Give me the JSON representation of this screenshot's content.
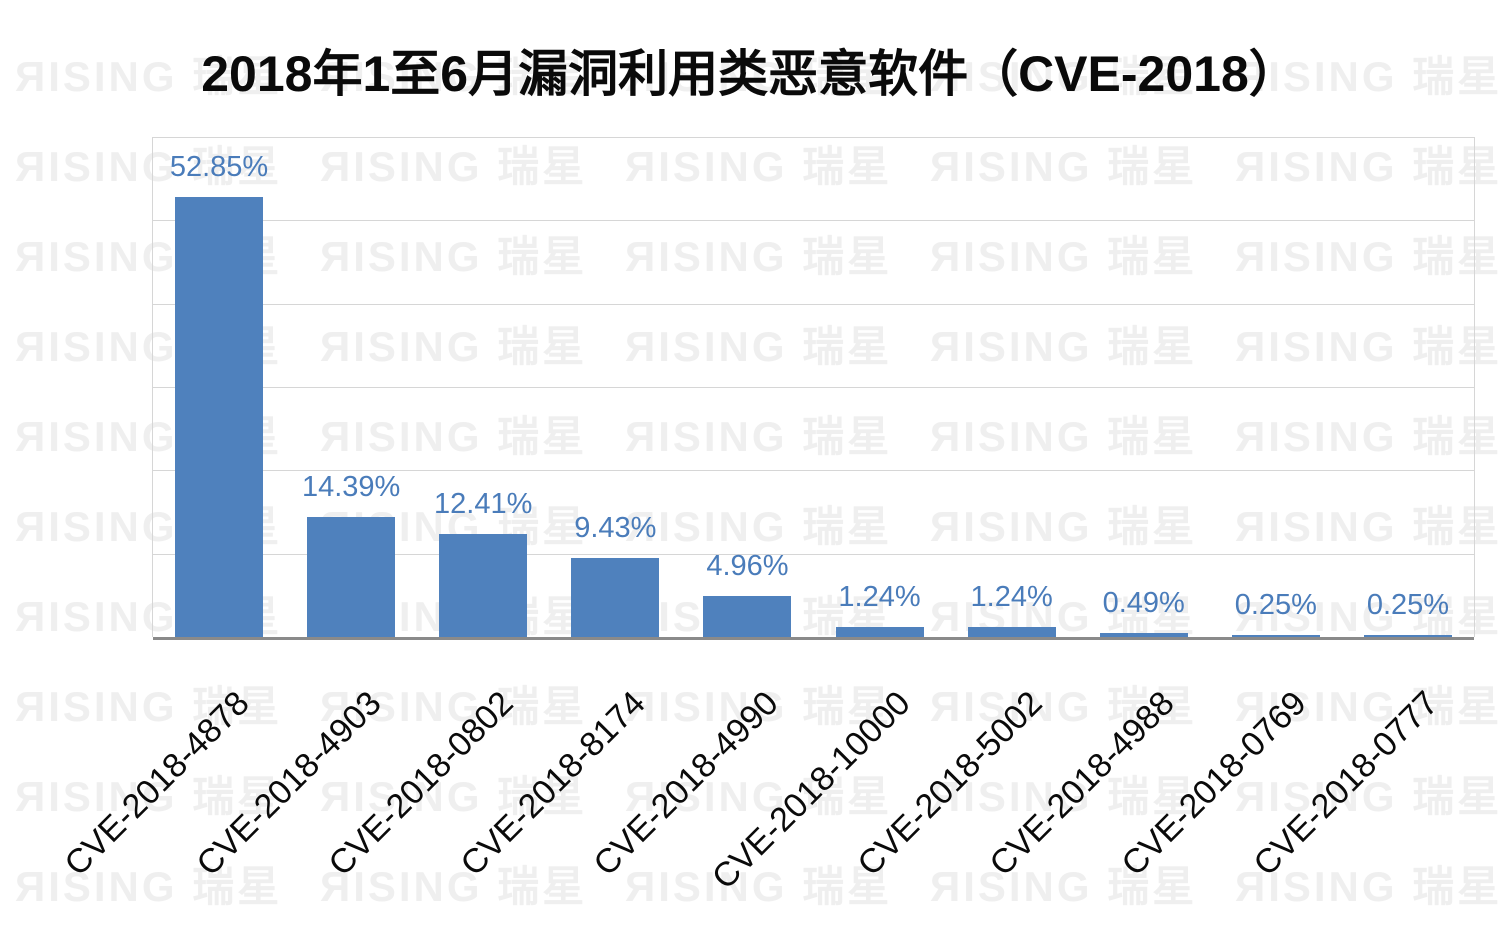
{
  "watermark": {
    "text": "ЯISING 瑞星"
  },
  "chart_data": {
    "type": "bar",
    "title": "2018年1至6月漏洞利用类恶意软件（CVE-2018）",
    "categories": [
      "CVE-2018-4878",
      "CVE-2018-4903",
      "CVE-2018-0802",
      "CVE-2018-8174",
      "CVE-2018-4990",
      "CVE-2018-10000",
      "CVE-2018-5002",
      "CVE-2018-4988",
      "CVE-2018-0769",
      "CVE-2018-0777"
    ],
    "values": [
      52.85,
      14.39,
      12.41,
      9.43,
      4.96,
      1.24,
      1.24,
      0.49,
      0.25,
      0.25
    ],
    "value_labels": [
      "52.85%",
      "14.39%",
      "12.41%",
      "9.43%",
      "4.96%",
      "1.24%",
      "1.24%",
      "0.49%",
      "0.25%",
      "0.25%"
    ],
    "xlabel": "",
    "ylabel": "",
    "ylim": [
      0,
      60
    ],
    "grid_step_percent": 10,
    "grid": "on",
    "legend": "none",
    "y_tick_labels_visible": false,
    "bar_color": "#4F81BD",
    "value_label_color": "#4A7CBA",
    "gridline_color": "#d6d6d6",
    "axis_line_color": "#8a8a8a",
    "watermark_color": "#efefef"
  }
}
